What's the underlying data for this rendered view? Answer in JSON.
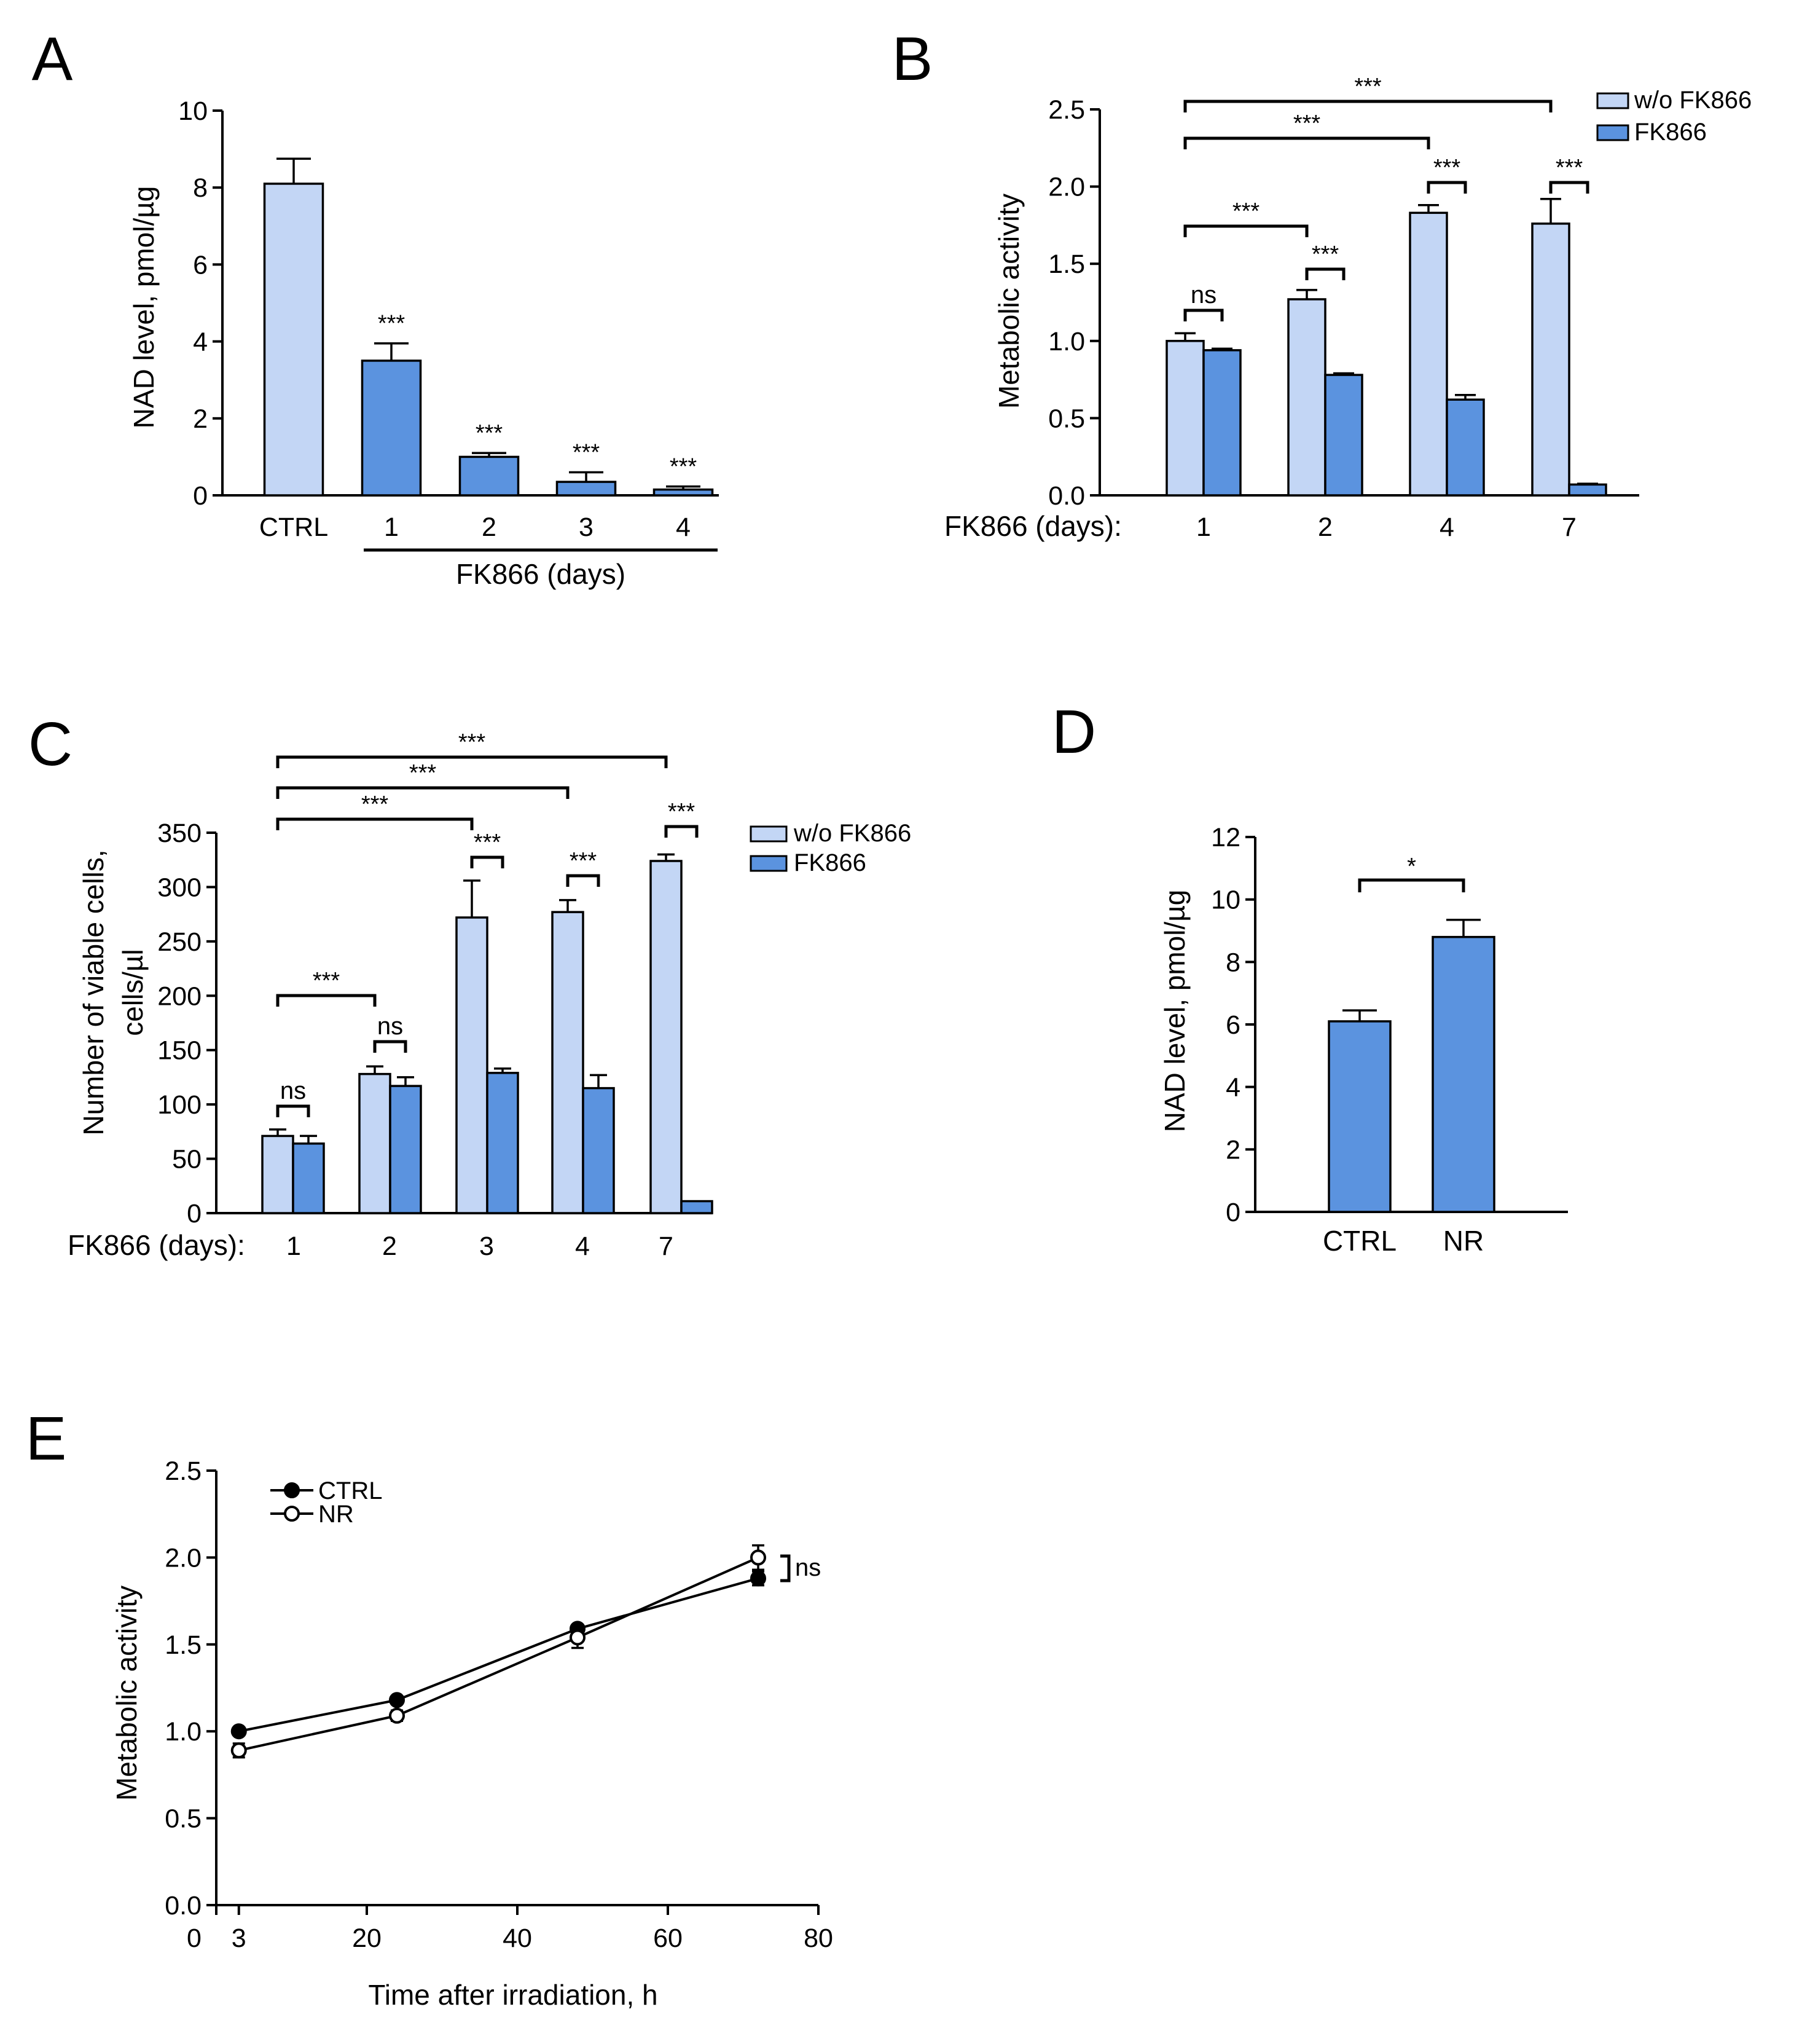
{
  "colors": {
    "light": "#c3d6f5",
    "dark": "#5b93df",
    "ink": "#000000"
  },
  "chart_data": [
    {
      "id": "A",
      "type": "bar",
      "panel_letter": "A",
      "ylabel": "NAD level, pmol/µg",
      "ylim": [
        0,
        10
      ],
      "yticks": [
        "0",
        "2",
        "4",
        "6",
        "8",
        "10"
      ],
      "categories": [
        "CTRL",
        "1",
        "2",
        "3",
        "4"
      ],
      "values": [
        8.1,
        3.5,
        1.0,
        0.35,
        0.15
      ],
      "errors": [
        0.65,
        0.45,
        0.1,
        0.25,
        0.08
      ],
      "bar_colors": [
        "light",
        "dark",
        "dark",
        "dark",
        "dark"
      ],
      "significance": [
        "",
        "***",
        "***",
        "***",
        "***"
      ],
      "group_label": "FK866 (days)"
    },
    {
      "id": "B",
      "type": "bar",
      "panel_letter": "B",
      "ylabel": "Metabolic activity",
      "ylim": [
        0,
        2.5
      ],
      "yticks": [
        "0.0",
        "0.5",
        "1.0",
        "1.5",
        "2.0",
        "2.5"
      ],
      "x_prefix": "FK866 (days):",
      "categories": [
        "1",
        "2",
        "4",
        "7"
      ],
      "series": [
        {
          "name": "w/o FK866",
          "values": [
            1.0,
            1.27,
            1.83,
            1.76
          ],
          "errors": [
            0.05,
            0.06,
            0.05,
            0.16
          ]
        },
        {
          "name": "FK866",
          "values": [
            0.94,
            0.78,
            0.62,
            0.07
          ],
          "errors": [
            0.01,
            0.01,
            0.03,
            0.005
          ]
        }
      ],
      "pair_significance": [
        "ns",
        "***",
        "***",
        "***"
      ],
      "comparisons": [
        {
          "from": 0,
          "to": 1,
          "label": "***"
        },
        {
          "from": 0,
          "to": 2,
          "label": "***"
        },
        {
          "from": 0,
          "to": 3,
          "label": "***"
        }
      ]
    },
    {
      "id": "C",
      "type": "bar",
      "panel_letter": "C",
      "ylabel_line1": "Number of viable cells,",
      "ylabel_line2": "cells/µl",
      "ylim": [
        0,
        350
      ],
      "yticks": [
        "0",
        "50",
        "100",
        "150",
        "200",
        "250",
        "300",
        "350"
      ],
      "x_prefix": "FK866 (days):",
      "categories": [
        "1",
        "2",
        "3",
        "4",
        "7"
      ],
      "series": [
        {
          "name": "w/o FK866",
          "values": [
            71,
            128,
            272,
            277,
            324
          ],
          "errors": [
            6,
            7,
            34,
            11,
            6
          ]
        },
        {
          "name": "FK866",
          "values": [
            64,
            117,
            129,
            115,
            11
          ],
          "errors": [
            7,
            8,
            4,
            12,
            0
          ]
        }
      ],
      "pair_significance": [
        "ns",
        "ns",
        "***",
        "***",
        "***"
      ],
      "comparisons": [
        {
          "from": 0,
          "to": 1,
          "label": "***"
        },
        {
          "from": 0,
          "to": 2,
          "label": "***"
        },
        {
          "from": 0,
          "to": 3,
          "label": "***"
        },
        {
          "from": 0,
          "to": 4,
          "label": "***"
        }
      ]
    },
    {
      "id": "D",
      "type": "bar",
      "panel_letter": "D",
      "ylabel": "NAD level, pmol/µg",
      "ylim": [
        0,
        12
      ],
      "yticks": [
        "0",
        "2",
        "4",
        "6",
        "8",
        "10",
        "12"
      ],
      "categories": [
        "CTRL",
        "NR"
      ],
      "values": [
        6.1,
        8.8
      ],
      "errors": [
        0.35,
        0.55
      ],
      "comparisons": [
        {
          "from": 0,
          "to": 1,
          "label": "*"
        }
      ]
    },
    {
      "id": "E",
      "type": "line",
      "panel_letter": "E",
      "xlabel": "Time after irradiation, h",
      "ylabel": "Metabolic activity",
      "xlim": [
        0,
        80
      ],
      "ylim": [
        0,
        2.5
      ],
      "xticks": [
        "0",
        "3",
        "20",
        "40",
        "60",
        "80"
      ],
      "yticks": [
        "0.0",
        "0.5",
        "1.0",
        "1.5",
        "2.0",
        "2.5"
      ],
      "x": [
        3,
        24,
        48,
        72
      ],
      "series": [
        {
          "name": "CTRL",
          "values": [
            1.0,
            1.18,
            1.59,
            1.88
          ],
          "errors": [
            0.02,
            0.02,
            0.02,
            0.04
          ],
          "marker": "filled"
        },
        {
          "name": "NR",
          "values": [
            0.89,
            1.09,
            1.54,
            2.0
          ],
          "errors": [
            0.04,
            0.03,
            0.06,
            0.07
          ],
          "marker": "open"
        }
      ],
      "annotation": "ns"
    }
  ]
}
